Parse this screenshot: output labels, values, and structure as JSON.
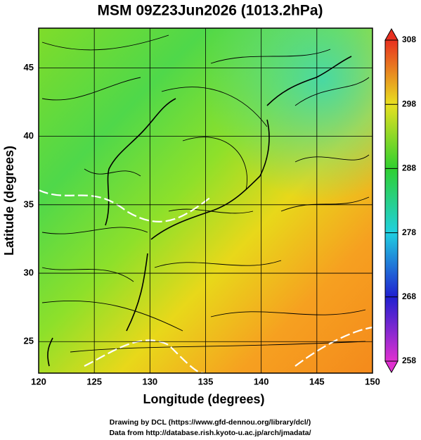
{
  "title": "MSM 09Z23Jun2026 (1013.2hPa)",
  "x_axis": {
    "label": "Longitude (degrees)",
    "range": [
      120,
      150
    ],
    "ticks": [
      120,
      125,
      130,
      135,
      140,
      145,
      150
    ]
  },
  "y_axis": {
    "label": "Latitude  (degrees)",
    "range": [
      22.7,
      47.9
    ],
    "ticks": [
      25,
      30,
      35,
      40,
      45
    ]
  },
  "colorbar": {
    "range": [
      258,
      308
    ],
    "ticks": [
      258,
      268,
      278,
      288,
      298,
      308
    ]
  },
  "credits": [
    "Drawing by DCL (https://www.gfd-dennou.org/library/dcl/)",
    "Data from http://database.rish.kyoto-u.ac.jp/arch/jmadata/"
  ]
}
